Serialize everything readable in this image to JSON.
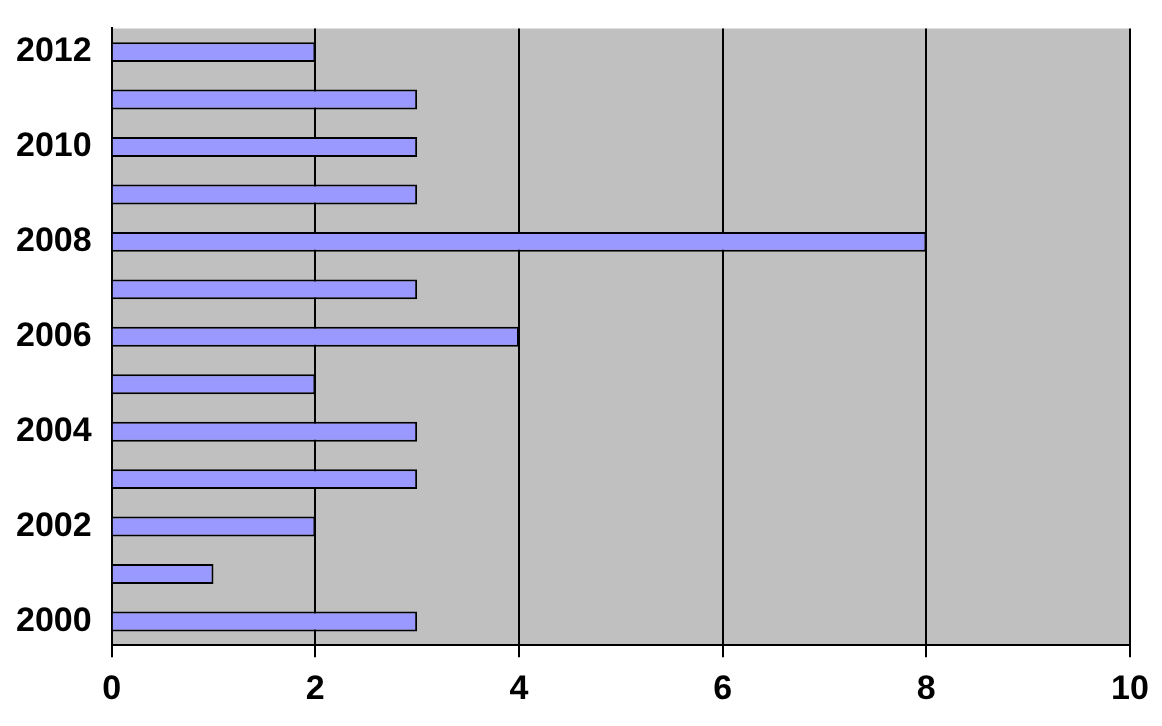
{
  "chart_data": {
    "type": "bar",
    "orientation": "horizontal",
    "categories": [
      "2012",
      null,
      "2010",
      null,
      "2008",
      null,
      "2006",
      null,
      "2004",
      null,
      "2002",
      null,
      "2000"
    ],
    "values": [
      2,
      3,
      3,
      3,
      8,
      3,
      4,
      2,
      3,
      3,
      2,
      1,
      3
    ],
    "color": "#9999ff",
    "xlim": [
      0,
      10
    ],
    "xticks": [
      0,
      2,
      4,
      6,
      8,
      10
    ],
    "grid": "x",
    "legend": false
  }
}
